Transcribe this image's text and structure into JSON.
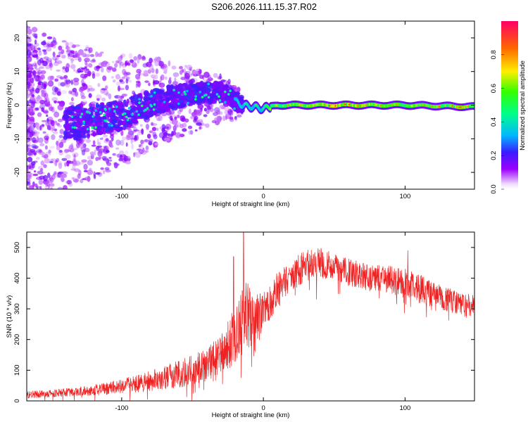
{
  "title": "S206.2026.111.15.37.R02",
  "colors": {
    "snr_line": "#ee2222",
    "background": "#ffffff",
    "colormap": [
      "#ffffff",
      "#9a00ff",
      "#3b1cff",
      "#00b8ff",
      "#00ff88",
      "#33ff00",
      "#ffee00",
      "#ff6600",
      "#ff0066"
    ]
  },
  "chart_data": [
    {
      "type": "heatmap",
      "name": "spectrogram",
      "xlabel": "Height of straight line (km)",
      "ylabel": "Frequency (Hz)",
      "xlim": [
        -167,
        149
      ],
      "ylim": [
        -25,
        25
      ],
      "x_ticks": [
        -100,
        0,
        100
      ],
      "x_tick_labels": [
        "-100",
        "0",
        "100"
      ],
      "y_ticks": [
        -20,
        -10,
        0,
        10,
        20
      ],
      "y_tick_labels": [
        "-20",
        "-10",
        "0",
        "10",
        "20"
      ],
      "description_points": {
        "ridge_x": [
          -130,
          -100,
          -70,
          -45,
          -30,
          -15,
          0,
          10,
          50,
          100,
          149
        ],
        "ridge_freq_hz": [
          -5,
          -3,
          2,
          3.5,
          4,
          0,
          -1,
          0,
          0,
          0,
          -0.5
        ],
        "ridge_amplitude": [
          0.25,
          0.3,
          0.35,
          0.35,
          0.3,
          0.4,
          0.55,
          0.7,
          0.9,
          0.75,
          0.8
        ]
      },
      "colorbar": {
        "label": "Normalized spectral amplitude",
        "range": [
          0,
          1
        ],
        "ticks": [
          0.0,
          0.2,
          0.4,
          0.6,
          0.8
        ],
        "tick_labels": [
          "0.0",
          "0.2",
          "0.4",
          "0.6",
          "0.8"
        ]
      }
    },
    {
      "type": "line",
      "name": "snr",
      "xlabel": "Height of straight line (km)",
      "ylabel": "SNR (10 * v/v)",
      "xlim": [
        -167,
        149
      ],
      "ylim": [
        0,
        550
      ],
      "x_ticks": [
        -100,
        0,
        100
      ],
      "x_tick_labels": [
        "-100",
        "0",
        "100"
      ],
      "y_ticks": [
        0,
        100,
        200,
        300,
        400,
        500
      ],
      "y_tick_labels": [
        "0",
        "100",
        "200",
        "300",
        "400",
        "500"
      ],
      "envelope_x": [
        -167,
        -150,
        -130,
        -110,
        -90,
        -70,
        -50,
        -40,
        -30,
        -22,
        -16,
        -12,
        -8,
        0,
        10,
        20,
        30,
        40,
        50,
        60,
        70,
        80,
        90,
        100,
        110,
        120,
        130,
        140,
        149
      ],
      "envelope_y": [
        20,
        24,
        30,
        40,
        55,
        75,
        100,
        120,
        150,
        200,
        250,
        270,
        240,
        290,
        360,
        410,
        440,
        450,
        440,
        420,
        405,
        400,
        395,
        385,
        365,
        345,
        330,
        315,
        305
      ],
      "noise_amp_y": [
        12,
        12,
        15,
        20,
        28,
        38,
        50,
        55,
        65,
        90,
        120,
        130,
        110,
        60,
        60,
        55,
        50,
        50,
        45,
        45,
        45,
        45,
        45,
        50,
        50,
        45,
        40,
        40,
        40
      ],
      "notable_peaks": [
        {
          "x": -14,
          "y": 560
        },
        {
          "x": -21,
          "y": 470
        },
        {
          "x": 102,
          "y": 490
        },
        {
          "x": 2,
          "y": 335
        }
      ]
    }
  ]
}
